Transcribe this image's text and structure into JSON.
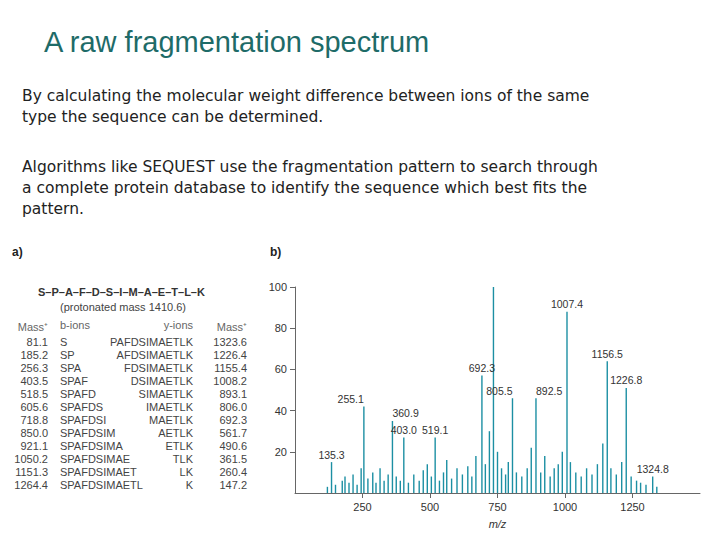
{
  "title": "A raw fragmentation spectrum",
  "paragraphs": [
    [
      "By calculating the molecular weight difference between ions of the same",
      "type the sequence can be determined."
    ],
    [
      "Algorithms like SEQUEST use the fragmentation pattern to search through",
      "a complete protein database to identify the sequence which best fits the",
      "pattern."
    ]
  ],
  "panel_a": {
    "label": "a)",
    "sequence": "S–P–A–F–D–S–I–M–A–E–T–L–K",
    "note": "(protonated mass 1410.6)",
    "headers": [
      "Mass⁺",
      "b-ions",
      "y-ions",
      "Mass⁺"
    ],
    "rows": [
      [
        "81.1",
        "S",
        "PAFDSIMAETLK",
        "1323.6"
      ],
      [
        "185.2",
        "SP",
        "AFDSIMAETLK",
        "1226.4"
      ],
      [
        "256.3",
        "SPA",
        "FDSIMAETLK",
        "1155.4"
      ],
      [
        "403.5",
        "SPAF",
        "DSIMAETLK",
        "1008.2"
      ],
      [
        "518.5",
        "SPAFD",
        "SIMAETLK",
        "893.1"
      ],
      [
        "605.6",
        "SPAFDS",
        "IMAETLK",
        "806.0"
      ],
      [
        "718.8",
        "SPAFDSI",
        "MAETLK",
        "692.3"
      ],
      [
        "850.0",
        "SPAFDSIM",
        "AETLK",
        "561.7"
      ],
      [
        "921.1",
        "SPAFDSIMA",
        "ETLK",
        "490.6"
      ],
      [
        "1050.2",
        "SPAFDSIMAE",
        "TLK",
        "361.5"
      ],
      [
        "1151.3",
        "SPAFDSIMAET",
        "LK",
        "260.4"
      ],
      [
        "1264.4",
        "SPAFDSIMAETL",
        "K",
        "147.2"
      ]
    ]
  },
  "panel_b_label": "b)",
  "chart_data": {
    "type": "bar",
    "xlabel": "m/z",
    "color": "#1c8fa3",
    "grid": false,
    "xlim": [
      0,
      1500
    ],
    "xticks": [
      250,
      500,
      750,
      1000,
      1250
    ],
    "ylim": [
      0,
      100
    ],
    "yticks": [
      20,
      40,
      60,
      80,
      100
    ],
    "x": [
      120,
      135.3,
      150,
      175,
      185.2,
      200,
      215,
      230,
      245,
      255.1,
      270,
      288,
      300,
      315,
      330,
      345,
      360.9,
      375,
      390,
      403.0,
      420,
      440,
      460,
      475,
      490,
      505,
      519.1,
      535,
      550,
      562,
      580,
      600,
      620,
      640,
      655,
      670,
      692.3,
      705,
      720,
      735,
      750,
      765,
      780,
      790,
      805.5,
      820,
      840,
      860,
      875,
      892.5,
      910,
      925,
      945,
      960,
      975,
      990,
      1007.4,
      1020,
      1040,
      1060,
      1080,
      1100,
      1120,
      1140,
      1156.5,
      1170,
      1190,
      1210,
      1226.8,
      1245,
      1265,
      1280,
      1300,
      1324.8,
      1340
    ],
    "values": [
      3,
      15,
      4,
      6,
      8,
      5,
      9,
      4,
      12,
      42,
      7,
      10,
      5,
      12,
      6,
      9,
      35,
      8,
      6,
      27,
      5,
      9,
      6,
      11,
      14,
      8,
      27,
      6,
      10,
      16,
      7,
      12,
      9,
      13,
      8,
      18,
      57,
      14,
      30,
      100,
      20,
      12,
      9,
      15,
      46,
      10,
      8,
      12,
      22,
      46,
      10,
      18,
      8,
      12,
      14,
      20,
      88,
      15,
      10,
      8,
      12,
      9,
      14,
      24,
      64,
      12,
      9,
      15,
      51,
      8,
      6,
      5,
      4,
      8,
      3
    ],
    "point_labels": [
      null,
      "135.3",
      null,
      null,
      null,
      null,
      null,
      null,
      null,
      "255.1",
      null,
      null,
      null,
      null,
      null,
      null,
      "360.9",
      null,
      null,
      "403.0",
      null,
      null,
      null,
      null,
      null,
      null,
      "519.1",
      null,
      null,
      null,
      null,
      null,
      null,
      null,
      null,
      null,
      "692.3",
      null,
      null,
      null,
      null,
      null,
      null,
      null,
      "805.5",
      null,
      null,
      null,
      null,
      "892.5",
      null,
      null,
      null,
      null,
      null,
      null,
      "1007.4",
      null,
      null,
      null,
      null,
      null,
      null,
      null,
      "1156.5",
      null,
      null,
      null,
      "1226.8",
      null,
      null,
      null,
      null,
      "1324.8",
      null
    ]
  }
}
